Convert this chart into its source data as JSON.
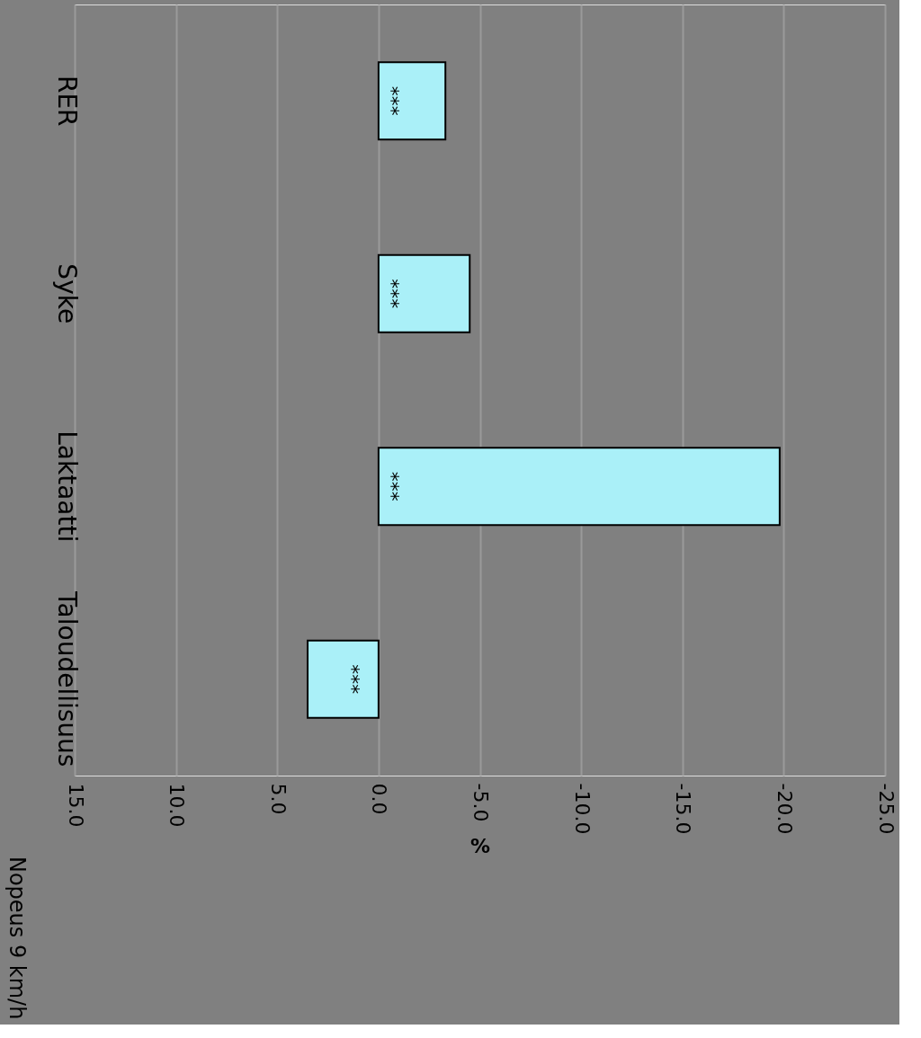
{
  "chart_data": {
    "type": "bar",
    "orientation": "horizontal",
    "title": "Nopeus 9 km/h",
    "xlabel": "%",
    "categories": [
      "RER",
      "Syke",
      "Laktaatti",
      "Taloudellisuus"
    ],
    "values": [
      -3.3,
      -4.5,
      -19.8,
      3.5
    ],
    "color": "#aaf0f8",
    "xlim": [
      15,
      -25
    ],
    "xticks": [
      {
        "value": 15,
        "label": "15.0"
      },
      {
        "value": 10,
        "label": "10.0"
      },
      {
        "value": 5,
        "label": "5.0"
      },
      {
        "value": 0,
        "label": "0.0"
      },
      {
        "value": -5,
        "label": "-5.0"
      },
      {
        "value": -10,
        "label": "-10.0"
      },
      {
        "value": -15,
        "label": "-15.0"
      },
      {
        "value": -20,
        "label": "-20.0"
      },
      {
        "value": -25,
        "label": "-25.0"
      }
    ],
    "grid": "x",
    "annotations": [
      "***",
      "***",
      "***",
      "***"
    ]
  }
}
